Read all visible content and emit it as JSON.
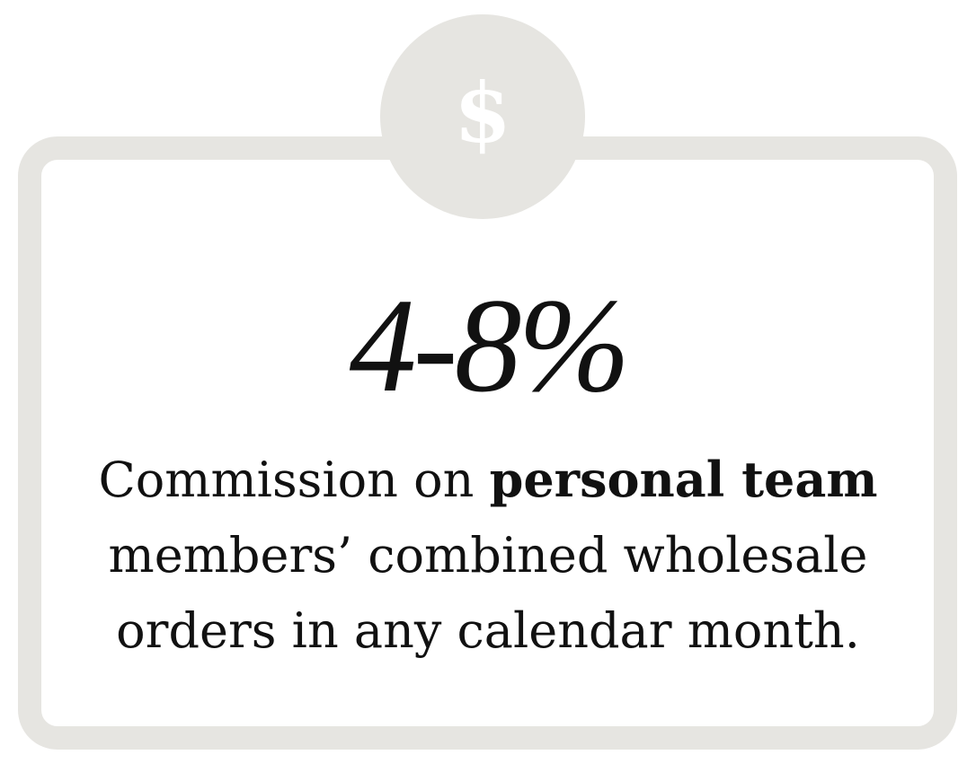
{
  "badge": {
    "icon": "dollar-sign-icon",
    "symbol": "$"
  },
  "headline": "4-8%",
  "description": {
    "part1": "Commission on ",
    "bold": "personal team",
    "line2": "members’ combined wholesale",
    "line3": "orders in any calendar month."
  },
  "colors": {
    "frame": "#e6e5e1",
    "text": "#111111",
    "icon": "#ffffff"
  }
}
